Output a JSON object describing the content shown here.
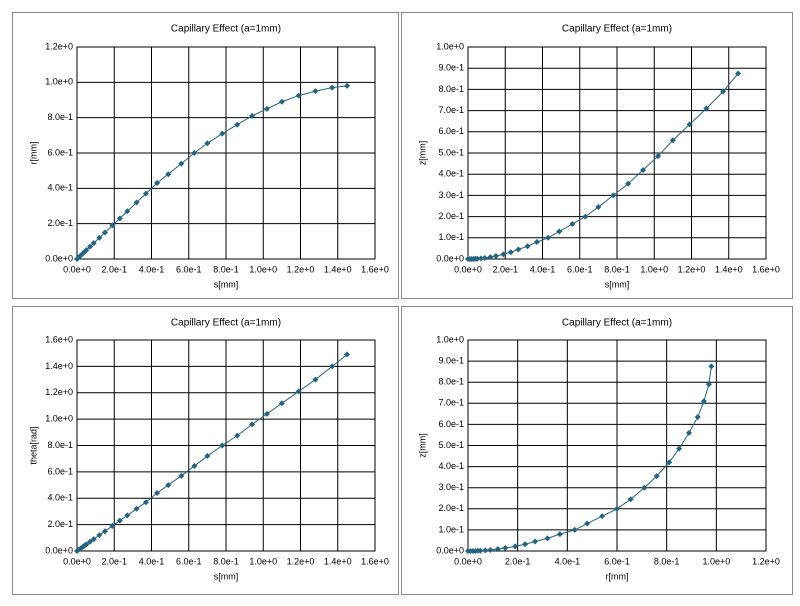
{
  "chart_data": [
    {
      "type": "line",
      "title": "Capillary Effect (a=1mm)",
      "xlabel": "s[mm]",
      "ylabel": "r[mm]",
      "color": "#26637f",
      "grid": true,
      "x": [
        0,
        0.01,
        0.02,
        0.03,
        0.04,
        0.05,
        0.07,
        0.09,
        0.12,
        0.15,
        0.19,
        0.23,
        0.27,
        0.32,
        0.37,
        0.43,
        0.49,
        0.56,
        0.63,
        0.7,
        0.78,
        0.86,
        0.94,
        1.02,
        1.1,
        1.19,
        1.28,
        1.37,
        1.45
      ],
      "values": [
        0,
        0.01,
        0.02,
        0.03,
        0.04,
        0.05,
        0.07,
        0.09,
        0.12,
        0.15,
        0.19,
        0.23,
        0.27,
        0.32,
        0.37,
        0.43,
        0.48,
        0.54,
        0.6,
        0.655,
        0.71,
        0.76,
        0.81,
        0.85,
        0.89,
        0.925,
        0.95,
        0.97,
        0.98
      ],
      "xlim": [
        0,
        1.6
      ],
      "ylim": [
        0,
        1.2
      ],
      "xticks": [
        {
          "value": 0,
          "label": "0.0e+0"
        },
        {
          "value": 0.2,
          "label": "2.0e-1"
        },
        {
          "value": 0.4,
          "label": "4.0e-1"
        },
        {
          "value": 0.6,
          "label": "6.0e-1"
        },
        {
          "value": 0.8,
          "label": "8.0e-1"
        },
        {
          "value": 1.0,
          "label": "1.0e+0"
        },
        {
          "value": 1.2,
          "label": "1.2e+0"
        },
        {
          "value": 1.4,
          "label": "1.4e+0"
        },
        {
          "value": 1.6,
          "label": "1.6e+0"
        }
      ],
      "yticks": [
        {
          "value": 0,
          "label": "0.0e+0"
        },
        {
          "value": 0.2,
          "label": "2.0e-1"
        },
        {
          "value": 0.4,
          "label": "4.0e-1"
        },
        {
          "value": 0.6,
          "label": "6.0e-1"
        },
        {
          "value": 0.8,
          "label": "8.0e-1"
        },
        {
          "value": 1.0,
          "label": "1.0e+0"
        },
        {
          "value": 1.2,
          "label": "1.2e+0"
        }
      ]
    },
    {
      "type": "line",
      "title": "Capillary Effect (a=1mm)",
      "xlabel": "s[mm]",
      "ylabel": "z[mm]",
      "color": "#26637f",
      "grid": true,
      "x": [
        0,
        0.01,
        0.02,
        0.03,
        0.04,
        0.05,
        0.07,
        0.09,
        0.12,
        0.15,
        0.19,
        0.23,
        0.27,
        0.32,
        0.37,
        0.43,
        0.49,
        0.56,
        0.63,
        0.7,
        0.78,
        0.86,
        0.94,
        1.02,
        1.1,
        1.19,
        1.28,
        1.37,
        1.45
      ],
      "values": [
        0,
        0,
        0,
        0,
        0.001,
        0.001,
        0.003,
        0.005,
        0.009,
        0.014,
        0.022,
        0.032,
        0.045,
        0.06,
        0.08,
        0.1,
        0.13,
        0.165,
        0.2,
        0.245,
        0.3,
        0.355,
        0.42,
        0.485,
        0.56,
        0.635,
        0.71,
        0.79,
        0.875
      ],
      "xlim": [
        0,
        1.6
      ],
      "ylim": [
        0,
        1.0
      ],
      "xticks": [
        {
          "value": 0,
          "label": "0.0e+0"
        },
        {
          "value": 0.2,
          "label": "2.0e-1"
        },
        {
          "value": 0.4,
          "label": "4.0e-1"
        },
        {
          "value": 0.6,
          "label": "6.0e-1"
        },
        {
          "value": 0.8,
          "label": "8.0e-1"
        },
        {
          "value": 1.0,
          "label": "1.0e+0"
        },
        {
          "value": 1.2,
          "label": "1.2e+0"
        },
        {
          "value": 1.4,
          "label": "1.4e+0"
        },
        {
          "value": 1.6,
          "label": "1.6e+0"
        }
      ],
      "yticks": [
        {
          "value": 0,
          "label": "0.0e+0"
        },
        {
          "value": 0.1,
          "label": "1.0e-1"
        },
        {
          "value": 0.2,
          "label": "2.0e-1"
        },
        {
          "value": 0.3,
          "label": "3.0e-1"
        },
        {
          "value": 0.4,
          "label": "4.0e-1"
        },
        {
          "value": 0.5,
          "label": "5.0e-1"
        },
        {
          "value": 0.6,
          "label": "6.0e-1"
        },
        {
          "value": 0.7,
          "label": "7.0e-1"
        },
        {
          "value": 0.8,
          "label": "8.0e-1"
        },
        {
          "value": 0.9,
          "label": "9.0e-1"
        },
        {
          "value": 1.0,
          "label": "1.0e+0"
        }
      ]
    },
    {
      "type": "line",
      "title": "Capillary Effect (a=1mm)",
      "xlabel": "s[mm]",
      "ylabel": "theta[rad]",
      "color": "#26637f",
      "grid": true,
      "x": [
        0,
        0.01,
        0.02,
        0.03,
        0.04,
        0.05,
        0.07,
        0.09,
        0.12,
        0.15,
        0.19,
        0.23,
        0.27,
        0.32,
        0.37,
        0.43,
        0.49,
        0.56,
        0.63,
        0.7,
        0.78,
        0.86,
        0.94,
        1.02,
        1.1,
        1.19,
        1.28,
        1.37,
        1.45
      ],
      "values": [
        0,
        0.01,
        0.02,
        0.03,
        0.04,
        0.05,
        0.07,
        0.09,
        0.12,
        0.15,
        0.19,
        0.23,
        0.27,
        0.32,
        0.37,
        0.44,
        0.5,
        0.57,
        0.645,
        0.72,
        0.8,
        0.875,
        0.96,
        1.04,
        1.12,
        1.21,
        1.3,
        1.4,
        1.49
      ],
      "xlim": [
        0,
        1.6
      ],
      "ylim": [
        0,
        1.6
      ],
      "xticks": [
        {
          "value": 0,
          "label": "0.0e+0"
        },
        {
          "value": 0.2,
          "label": "2.0e-1"
        },
        {
          "value": 0.4,
          "label": "4.0e-1"
        },
        {
          "value": 0.6,
          "label": "6.0e-1"
        },
        {
          "value": 0.8,
          "label": "8.0e-1"
        },
        {
          "value": 1.0,
          "label": "1.0e+0"
        },
        {
          "value": 1.2,
          "label": "1.2e+0"
        },
        {
          "value": 1.4,
          "label": "1.4e+0"
        },
        {
          "value": 1.6,
          "label": "1.6e+0"
        }
      ],
      "yticks": [
        {
          "value": 0,
          "label": "0.0e+0"
        },
        {
          "value": 0.2,
          "label": "2.0e-1"
        },
        {
          "value": 0.4,
          "label": "4.0e-1"
        },
        {
          "value": 0.6,
          "label": "6.0e-1"
        },
        {
          "value": 0.8,
          "label": "8.0e-1"
        },
        {
          "value": 1.0,
          "label": "1.0e+0"
        },
        {
          "value": 1.2,
          "label": "1.2e+0"
        },
        {
          "value": 1.4,
          "label": "1.4e+0"
        },
        {
          "value": 1.6,
          "label": "1.6e+0"
        }
      ]
    },
    {
      "type": "line",
      "title": "Capillary Effect (a=1mm)",
      "xlabel": "r[mm]",
      "ylabel": "z[mm]",
      "color": "#26637f",
      "grid": true,
      "x": [
        0,
        0.01,
        0.02,
        0.03,
        0.04,
        0.05,
        0.07,
        0.09,
        0.12,
        0.15,
        0.19,
        0.23,
        0.27,
        0.32,
        0.37,
        0.43,
        0.48,
        0.54,
        0.6,
        0.655,
        0.71,
        0.76,
        0.81,
        0.85,
        0.89,
        0.925,
        0.95,
        0.97,
        0.98
      ],
      "values": [
        0,
        0,
        0,
        0,
        0.001,
        0.001,
        0.003,
        0.005,
        0.009,
        0.014,
        0.022,
        0.032,
        0.045,
        0.06,
        0.08,
        0.1,
        0.13,
        0.165,
        0.2,
        0.245,
        0.3,
        0.355,
        0.42,
        0.485,
        0.56,
        0.635,
        0.71,
        0.79,
        0.875
      ],
      "xlim": [
        0,
        1.2
      ],
      "ylim": [
        0,
        1.0
      ],
      "xticks": [
        {
          "value": 0,
          "label": "0.0e+0"
        },
        {
          "value": 0.2,
          "label": "2.0e-1"
        },
        {
          "value": 0.4,
          "label": "4.0e-1"
        },
        {
          "value": 0.6,
          "label": "6.0e-1"
        },
        {
          "value": 0.8,
          "label": "8.0e-1"
        },
        {
          "value": 1.0,
          "label": "1.0e+0"
        },
        {
          "value": 1.2,
          "label": "1.2e+0"
        }
      ],
      "yticks": [
        {
          "value": 0,
          "label": "0.0e+0"
        },
        {
          "value": 0.1,
          "label": "1.0e-1"
        },
        {
          "value": 0.2,
          "label": "2.0e-1"
        },
        {
          "value": 0.3,
          "label": "3.0e-1"
        },
        {
          "value": 0.4,
          "label": "4.0e-1"
        },
        {
          "value": 0.5,
          "label": "5.0e-1"
        },
        {
          "value": 0.6,
          "label": "6.0e-1"
        },
        {
          "value": 0.7,
          "label": "7.0e-1"
        },
        {
          "value": 0.8,
          "label": "8.0e-1"
        },
        {
          "value": 0.9,
          "label": "9.0e-1"
        },
        {
          "value": 1.0,
          "label": "1.0e+0"
        }
      ]
    }
  ]
}
